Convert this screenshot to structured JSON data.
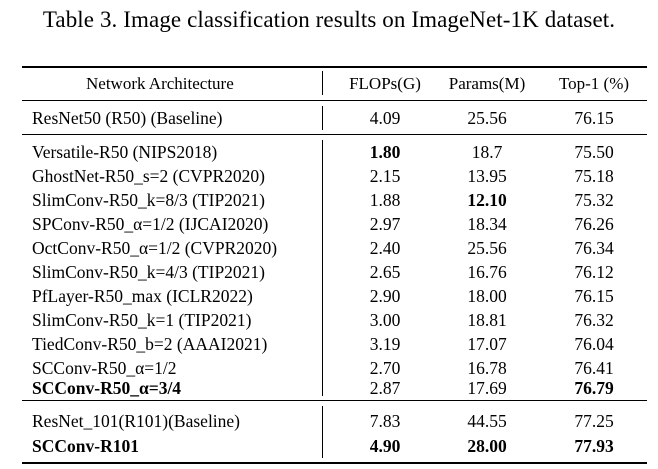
{
  "caption": "Table 3. Image classification results on ImageNet-1K dataset.",
  "columns": {
    "name": "Network Architecture",
    "flops": "FLOPs(G)",
    "params": "Params(M)",
    "top1": "Top-1 (%)"
  },
  "baseline": {
    "name": "ResNet50 (R50) (Baseline)",
    "flops": "4.09",
    "params": "25.56",
    "top1": "76.15"
  },
  "rows": [
    {
      "name": "Versatile-R50 (NIPS2018)",
      "flops": "1.80",
      "params": "18.7",
      "top1": "75.50"
    },
    {
      "name": "GhostNet-R50_s=2 (CVPR2020)",
      "flops": "2.15",
      "params": "13.95",
      "top1": "75.18"
    },
    {
      "name": "SlimConv-R50_k=8/3 (TIP2021)",
      "flops": "1.88",
      "params": "12.10",
      "top1": "75.32"
    },
    {
      "name": "SPConv-R50_α=1/2 (IJCAI2020)",
      "flops": "2.97",
      "params": "18.34",
      "top1": "76.26"
    },
    {
      "name": "OctConv-R50_α=1/2 (CVPR2020)",
      "flops": "2.40",
      "params": "25.56",
      "top1": "76.34"
    },
    {
      "name": "SlimConv-R50_k=4/3 (TIP2021)",
      "flops": "2.65",
      "params": "16.76",
      "top1": "76.12"
    },
    {
      "name": "PfLayer-R50_max (ICLR2022)",
      "flops": "2.90",
      "params": "18.00",
      "top1": "76.15"
    },
    {
      "name": "SlimConv-R50_k=1 (TIP2021)",
      "flops": "3.00",
      "params": "18.81",
      "top1": "76.32"
    },
    {
      "name": "TiedConv-R50_b=2 (AAAI2021)",
      "flops": "3.19",
      "params": "17.07",
      "top1": "76.04"
    },
    {
      "name": "SCConv-R50_α=1/2",
      "flops": "2.70",
      "params": "16.78",
      "top1": "76.41"
    },
    {
      "name": "SCConv-R50_α=3/4",
      "flops": "2.87",
      "params": "17.69",
      "top1": "76.79"
    }
  ],
  "r101": [
    {
      "name": "ResNet_101(R101)(Baseline)",
      "flops": "7.83",
      "params": "44.55",
      "top1": "77.25"
    },
    {
      "name": "SCConv-R101",
      "flops": "4.90",
      "params": "28.00",
      "top1": "77.93"
    }
  ]
}
